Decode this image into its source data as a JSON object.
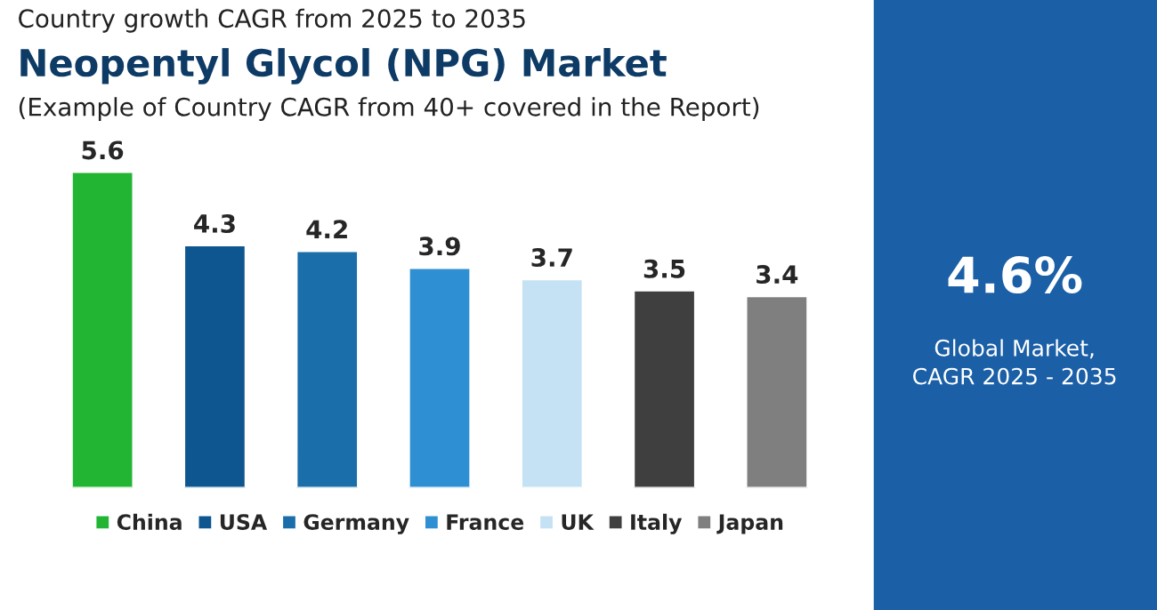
{
  "chart_data": {
    "type": "bar",
    "title": "Neopentyl Glycol (NPG) Market",
    "subtitle": "(Example of Country CAGR from 40+ covered in the Report)",
    "annotations": [
      "Country growth CAGR from 2025 to 2035",
      "4.6%",
      "Global Market,\nCAGR 2025 - 2035"
    ],
    "categories": [
      "China",
      "USA",
      "Germany",
      "France",
      "UK",
      "Italy",
      "Japan"
    ],
    "values": [
      5.6,
      4.3,
      4.2,
      3.9,
      3.7,
      3.5,
      3.4
    ],
    "colors": [
      "#22b534",
      "#0d5690",
      "#1a6eaa",
      "#2f8fd3",
      "#c4e2f4",
      "#3f3f3f",
      "#7f7f7f"
    ],
    "data_labels": true,
    "tick_labels": false
  }
}
